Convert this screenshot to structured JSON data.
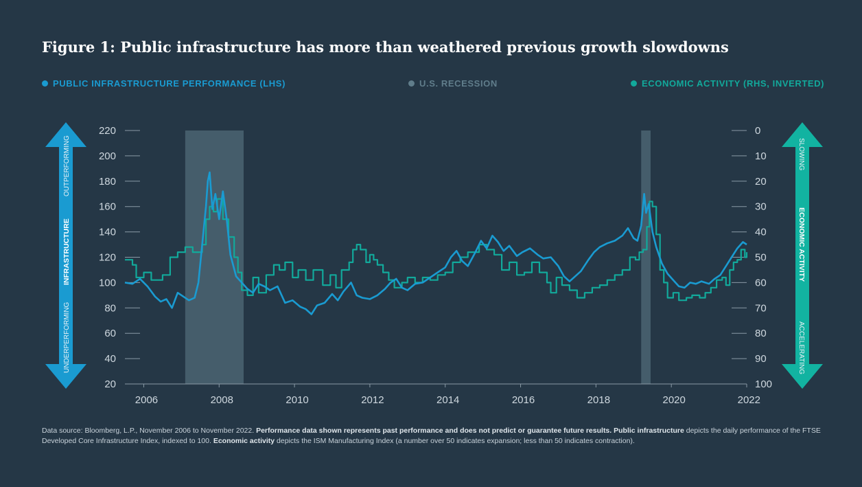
{
  "title": "Figure 1: Public infrastructure has more than weathered previous growth slowdowns",
  "legend": [
    {
      "label": "PUBLIC INFRASTRUCTURE PERFORMANCE (LHS)",
      "color": "#1a9bd1"
    },
    {
      "label": "U.S. RECESSION",
      "color": "#607d8b"
    },
    {
      "label": "ECONOMIC ACTIVITY (RHS, INVERTED)",
      "color": "#12a99b"
    }
  ],
  "arrows": {
    "left": {
      "top": "OUTPERFORMING",
      "middle": "INFRASTRUCTURE",
      "bottom": "UNDERPERFORMING"
    },
    "right": {
      "top": "SLOWING",
      "middle": "ECONOMIC ACTIVITY",
      "bottom": "ACCELERATING"
    }
  },
  "footnote": {
    "p1": "Data source: Bloomberg, L.P., November 2006 to November 2022. ",
    "b1": "Performance data shown represents past performance and does not predict or guarantee future results.",
    "p2": " ",
    "b2": "Public infrastructure",
    "p3": " depicts the daily performance of the FTSE Developed Core Infrastructure Index, indexed to 100. ",
    "b3": "Economic activity",
    "p4": " depicts the ISM Manufacturing Index (a number over 50 indicates expansion; less than 50 indicates contraction)."
  },
  "chart_data": {
    "type": "line",
    "x_ticks": [
      "2006",
      "2008",
      "2010",
      "2012",
      "2014",
      "2016",
      "2018",
      "2020",
      "2022"
    ],
    "xlim": [
      2005.5,
      2022.0
    ],
    "left_axis": {
      "ticks": [
        220,
        200,
        180,
        160,
        140,
        120,
        100,
        80,
        60,
        40,
        20
      ],
      "ylim": [
        20,
        220
      ]
    },
    "right_axis": {
      "ticks": [
        0,
        10,
        20,
        30,
        40,
        50,
        60,
        70,
        80,
        90,
        100
      ],
      "ylim": [
        0,
        100
      ],
      "inverted": true
    },
    "recessions": [
      {
        "start": 2007.1,
        "end": 2008.65
      },
      {
        "start": 2019.2,
        "end": 2019.45
      }
    ],
    "series": [
      {
        "name": "PUBLIC INFRASTRUCTURE PERFORMANCE (LHS)",
        "axis": "left",
        "color": "#1a9bd1",
        "points": [
          [
            2005.5,
            100
          ],
          [
            2005.7,
            99
          ],
          [
            2005.9,
            103
          ],
          [
            2006.1,
            97
          ],
          [
            2006.3,
            89
          ],
          [
            2006.45,
            85
          ],
          [
            2006.6,
            87
          ],
          [
            2006.75,
            80
          ],
          [
            2006.9,
            92
          ],
          [
            2007.05,
            89
          ],
          [
            2007.2,
            86
          ],
          [
            2007.35,
            88
          ],
          [
            2007.45,
            100
          ],
          [
            2007.55,
            130
          ],
          [
            2007.65,
            160
          ],
          [
            2007.7,
            180
          ],
          [
            2007.75,
            187
          ],
          [
            2007.82,
            158
          ],
          [
            2007.9,
            170
          ],
          [
            2008.0,
            150
          ],
          [
            2008.1,
            172
          ],
          [
            2008.2,
            150
          ],
          [
            2008.3,
            122
          ],
          [
            2008.45,
            105
          ],
          [
            2008.6,
            100
          ],
          [
            2008.75,
            95
          ],
          [
            2008.9,
            92
          ],
          [
            2009.05,
            99
          ],
          [
            2009.2,
            97
          ],
          [
            2009.35,
            94
          ],
          [
            2009.55,
            97
          ],
          [
            2009.75,
            84
          ],
          [
            2009.95,
            86
          ],
          [
            2010.15,
            81
          ],
          [
            2010.3,
            79
          ],
          [
            2010.45,
            75
          ],
          [
            2010.6,
            82
          ],
          [
            2010.8,
            84
          ],
          [
            2011.0,
            91
          ],
          [
            2011.15,
            86
          ],
          [
            2011.3,
            93
          ],
          [
            2011.5,
            100
          ],
          [
            2011.65,
            90
          ],
          [
            2011.8,
            88
          ],
          [
            2012.0,
            87
          ],
          [
            2012.2,
            90
          ],
          [
            2012.4,
            95
          ],
          [
            2012.55,
            100
          ],
          [
            2012.7,
            103
          ],
          [
            2012.85,
            96
          ],
          [
            2013.0,
            94
          ],
          [
            2013.2,
            99
          ],
          [
            2013.4,
            100
          ],
          [
            2013.6,
            104
          ],
          [
            2013.8,
            108
          ],
          [
            2014.0,
            112
          ],
          [
            2014.15,
            120
          ],
          [
            2014.3,
            125
          ],
          [
            2014.45,
            117
          ],
          [
            2014.6,
            113
          ],
          [
            2014.8,
            124
          ],
          [
            2014.95,
            133
          ],
          [
            2015.1,
            127
          ],
          [
            2015.25,
            137
          ],
          [
            2015.4,
            132
          ],
          [
            2015.55,
            125
          ],
          [
            2015.7,
            129
          ],
          [
            2015.9,
            121
          ],
          [
            2016.05,
            124
          ],
          [
            2016.25,
            127
          ],
          [
            2016.45,
            122
          ],
          [
            2016.6,
            119
          ],
          [
            2016.8,
            120
          ],
          [
            2017.0,
            113
          ],
          [
            2017.15,
            105
          ],
          [
            2017.3,
            101
          ],
          [
            2017.45,
            105
          ],
          [
            2017.6,
            109
          ],
          [
            2017.8,
            118
          ],
          [
            2017.95,
            124
          ],
          [
            2018.1,
            128
          ],
          [
            2018.3,
            131
          ],
          [
            2018.5,
            133
          ],
          [
            2018.7,
            137
          ],
          [
            2018.85,
            143
          ],
          [
            2019.0,
            135
          ],
          [
            2019.1,
            133
          ],
          [
            2019.2,
            145
          ],
          [
            2019.28,
            170
          ],
          [
            2019.33,
            155
          ],
          [
            2019.4,
            162
          ],
          [
            2019.5,
            140
          ],
          [
            2019.6,
            128
          ],
          [
            2019.75,
            115
          ],
          [
            2019.9,
            107
          ],
          [
            2020.05,
            102
          ],
          [
            2020.2,
            97
          ],
          [
            2020.35,
            96
          ],
          [
            2020.5,
            100
          ],
          [
            2020.65,
            99
          ],
          [
            2020.8,
            101
          ],
          [
            2021.0,
            99
          ],
          [
            2021.15,
            103
          ],
          [
            2021.3,
            106
          ],
          [
            2021.45,
            113
          ],
          [
            2021.6,
            120
          ],
          [
            2021.75,
            127
          ],
          [
            2021.9,
            132
          ],
          [
            2022.0,
            130
          ]
        ]
      },
      {
        "name": "ECONOMIC ACTIVITY (RHS, INVERTED)",
        "axis": "right",
        "color": "#12a99b",
        "points": [
          [
            2005.5,
            51
          ],
          [
            2005.7,
            53
          ],
          [
            2005.8,
            58
          ],
          [
            2006.0,
            56
          ],
          [
            2006.2,
            59
          ],
          [
            2006.5,
            57
          ],
          [
            2006.7,
            50
          ],
          [
            2006.9,
            48
          ],
          [
            2007.1,
            46
          ],
          [
            2007.3,
            48
          ],
          [
            2007.45,
            48
          ],
          [
            2007.55,
            45
          ],
          [
            2007.65,
            35
          ],
          [
            2007.75,
            30
          ],
          [
            2007.85,
            32
          ],
          [
            2007.95,
            27
          ],
          [
            2008.1,
            35
          ],
          [
            2008.25,
            42
          ],
          [
            2008.4,
            50
          ],
          [
            2008.5,
            56
          ],
          [
            2008.6,
            63
          ],
          [
            2008.75,
            65
          ],
          [
            2008.9,
            58
          ],
          [
            2009.05,
            64
          ],
          [
            2009.25,
            57
          ],
          [
            2009.45,
            53
          ],
          [
            2009.6,
            55
          ],
          [
            2009.75,
            52
          ],
          [
            2009.95,
            58
          ],
          [
            2010.1,
            55
          ],
          [
            2010.3,
            59
          ],
          [
            2010.5,
            55
          ],
          [
            2010.75,
            61
          ],
          [
            2010.95,
            57
          ],
          [
            2011.1,
            62
          ],
          [
            2011.25,
            55
          ],
          [
            2011.45,
            52
          ],
          [
            2011.55,
            47
          ],
          [
            2011.65,
            45
          ],
          [
            2011.75,
            47
          ],
          [
            2011.9,
            52
          ],
          [
            2012.0,
            49
          ],
          [
            2012.1,
            51
          ],
          [
            2012.2,
            53
          ],
          [
            2012.35,
            56
          ],
          [
            2012.5,
            59
          ],
          [
            2012.65,
            62
          ],
          [
            2012.85,
            60
          ],
          [
            2013.0,
            58
          ],
          [
            2013.2,
            60
          ],
          [
            2013.4,
            58
          ],
          [
            2013.6,
            59
          ],
          [
            2013.8,
            57
          ],
          [
            2014.0,
            56
          ],
          [
            2014.2,
            52
          ],
          [
            2014.4,
            50
          ],
          [
            2014.6,
            48
          ],
          [
            2014.75,
            48
          ],
          [
            2014.9,
            45
          ],
          [
            2015.1,
            47
          ],
          [
            2015.3,
            49
          ],
          [
            2015.5,
            55
          ],
          [
            2015.7,
            52
          ],
          [
            2015.9,
            57
          ],
          [
            2016.1,
            56
          ],
          [
            2016.3,
            52
          ],
          [
            2016.5,
            56
          ],
          [
            2016.7,
            60
          ],
          [
            2016.8,
            64
          ],
          [
            2016.95,
            58
          ],
          [
            2017.1,
            61
          ],
          [
            2017.3,
            63
          ],
          [
            2017.5,
            66
          ],
          [
            2017.7,
            64
          ],
          [
            2017.9,
            62
          ],
          [
            2018.1,
            61
          ],
          [
            2018.3,
            59
          ],
          [
            2018.5,
            57
          ],
          [
            2018.7,
            55
          ],
          [
            2018.9,
            50
          ],
          [
            2019.05,
            51
          ],
          [
            2019.15,
            48
          ],
          [
            2019.25,
            47
          ],
          [
            2019.35,
            38
          ],
          [
            2019.42,
            28
          ],
          [
            2019.5,
            30
          ],
          [
            2019.6,
            41
          ],
          [
            2019.7,
            55
          ],
          [
            2019.8,
            60
          ],
          [
            2019.9,
            66
          ],
          [
            2020.05,
            64
          ],
          [
            2020.2,
            67
          ],
          [
            2020.4,
            66
          ],
          [
            2020.55,
            65
          ],
          [
            2020.75,
            66
          ],
          [
            2020.9,
            64
          ],
          [
            2021.05,
            62
          ],
          [
            2021.2,
            59
          ],
          [
            2021.35,
            58
          ],
          [
            2021.45,
            61
          ],
          [
            2021.55,
            55
          ],
          [
            2021.65,
            52
          ],
          [
            2021.75,
            51
          ],
          [
            2021.85,
            47
          ],
          [
            2021.95,
            50
          ],
          [
            2022.0,
            48
          ]
        ]
      }
    ]
  }
}
